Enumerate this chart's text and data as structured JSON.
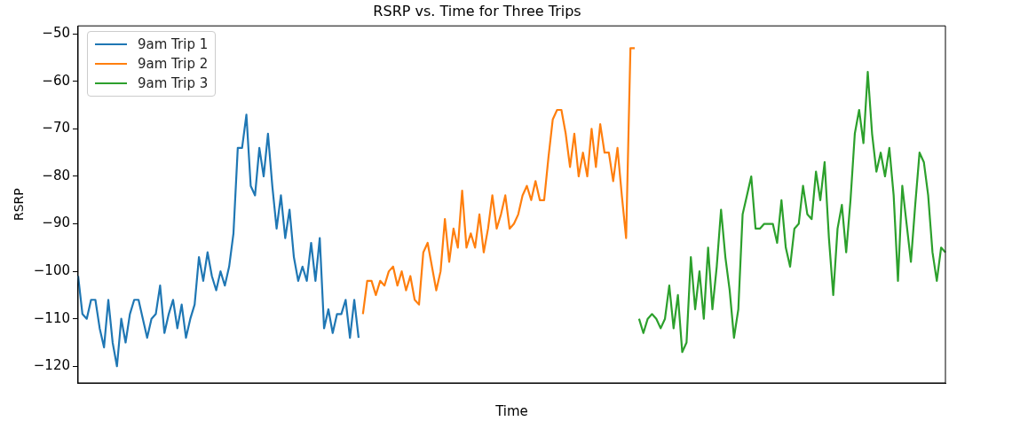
{
  "chart_data": {
    "type": "line",
    "title": "RSRP vs. Time for Three Trips",
    "xlabel": "Time",
    "ylabel": "RSRP",
    "tick_labels": "y",
    "grid": false,
    "legend": "top left",
    "marker": "none",
    "line_style": "solid",
    "categories": [
      null,
      null,
      null,
      null,
      null,
      null,
      null,
      null,
      null,
      null,
      null,
      null,
      null,
      null,
      null,
      null,
      null,
      null,
      null,
      null,
      null,
      null,
      null,
      null,
      null,
      null,
      null,
      null,
      null,
      null,
      null,
      null,
      null,
      null,
      null,
      null,
      null,
      null,
      null,
      null,
      null,
      null,
      null,
      null,
      null,
      null,
      null,
      null,
      null,
      null,
      null,
      null,
      null,
      null,
      null,
      null,
      null,
      null,
      null,
      null,
      null,
      null,
      null,
      null,
      null,
      null,
      null,
      null,
      null,
      null,
      null,
      null,
      null,
      null,
      null,
      null,
      null,
      null,
      null,
      null,
      null,
      null,
      null,
      null,
      null,
      null,
      null,
      null,
      null,
      null,
      null,
      null,
      null,
      null,
      null,
      null,
      null,
      null,
      null,
      null,
      null,
      null,
      null,
      null,
      null,
      null,
      null,
      null,
      null,
      null,
      null,
      null,
      null,
      null,
      null,
      null,
      null,
      null,
      null,
      null,
      null,
      null,
      null,
      null,
      null,
      null,
      null,
      null,
      null,
      null,
      null,
      null,
      null,
      null,
      null,
      null,
      null,
      null,
      null,
      null,
      null,
      null,
      null,
      null,
      null,
      null,
      null,
      null,
      null,
      null,
      null,
      null,
      null,
      null,
      null,
      null,
      null,
      null,
      null,
      null,
      null,
      null,
      null,
      null,
      null,
      null,
      null,
      null,
      null,
      null,
      null,
      null,
      null,
      null,
      null,
      null,
      null,
      null,
      null,
      null,
      null,
      null,
      null,
      null,
      null,
      null,
      null,
      null,
      null,
      null,
      null,
      null,
      null,
      null,
      null,
      null,
      null,
      null,
      null,
      null,
      null,
      null
    ],
    "ylim": [
      -123.5,
      -48.3
    ],
    "yticks": [
      -120,
      -110,
      -100,
      -90,
      -80,
      -70,
      -60,
      -50
    ],
    "series": [
      {
        "name": "9am Trip 1",
        "color": "#1f77b4",
        "values": [
          -101,
          -109,
          -110,
          -106,
          -106,
          -112,
          -116,
          -106,
          -115,
          -120,
          -110,
          -115,
          -109,
          -106,
          -106,
          -110,
          -114,
          -110,
          -109,
          -103,
          -113,
          -109,
          -106,
          -112,
          -107,
          -114,
          -110,
          -107,
          -97,
          -102,
          -96,
          -101,
          -104,
          -100,
          -103,
          -99,
          -92,
          -74,
          -74,
          -67,
          -82,
          -84,
          -74,
          -80,
          -71,
          -82,
          -91,
          -84,
          -93,
          -87,
          -97,
          -102,
          -99,
          -102,
          -94,
          -102,
          -93,
          -112,
          -108,
          -113,
          -109,
          -109,
          -106,
          -114,
          -106,
          -114,
          null,
          null,
          null,
          null,
          null,
          null,
          null,
          null,
          null,
          null,
          null,
          null,
          null,
          null,
          null,
          null,
          null,
          null,
          null,
          null,
          null,
          null,
          null,
          null,
          null,
          null,
          null,
          null,
          null,
          null,
          null,
          null,
          null,
          null,
          null,
          null,
          null,
          null,
          null,
          null,
          null,
          null,
          null,
          null,
          null,
          null,
          null,
          null,
          null,
          null,
          null,
          null,
          null,
          null,
          null,
          null,
          null,
          null,
          null,
          null,
          null,
          null,
          null,
          null,
          null,
          null,
          null,
          null,
          null,
          null,
          null,
          null,
          null,
          null,
          null,
          null,
          null,
          null,
          null,
          null,
          null,
          null,
          null,
          null,
          null,
          null,
          null,
          null,
          null,
          null,
          null,
          null,
          null,
          null,
          null,
          null,
          null,
          null,
          null,
          null,
          null,
          null,
          null,
          null,
          null,
          null,
          null,
          null,
          null,
          null,
          null,
          null,
          null,
          null,
          null,
          null,
          null,
          null,
          null,
          null,
          null,
          null,
          null,
          null,
          null,
          null,
          null,
          null,
          null,
          null,
          null,
          null,
          null,
          null,
          null,
          null
        ]
      },
      {
        "name": "9am Trip 2",
        "color": "#ff7f0e",
        "values": [
          null,
          null,
          null,
          null,
          null,
          null,
          null,
          null,
          null,
          null,
          null,
          null,
          null,
          null,
          null,
          null,
          null,
          null,
          null,
          null,
          null,
          null,
          null,
          null,
          null,
          null,
          null,
          null,
          null,
          null,
          null,
          null,
          null,
          null,
          null,
          null,
          null,
          null,
          null,
          null,
          null,
          null,
          null,
          null,
          null,
          null,
          null,
          null,
          null,
          null,
          null,
          null,
          null,
          null,
          null,
          null,
          null,
          null,
          null,
          null,
          null,
          null,
          null,
          null,
          null,
          null,
          -109,
          -102,
          -102,
          -105,
          -102,
          -103,
          -100,
          -99,
          -103,
          -100,
          -104,
          -101,
          -106,
          -107,
          -96,
          -94,
          -99,
          -104,
          -100,
          -89,
          -98,
          -91,
          -95,
          -83,
          -95,
          -92,
          -95,
          -88,
          -96,
          -91,
          -84,
          -91,
          -88,
          -84,
          -91,
          -90,
          -88,
          -84,
          -82,
          -85,
          -81,
          -85,
          -85,
          -76,
          -68,
          -66,
          -66,
          -71,
          -78,
          -71,
          -80,
          -75,
          -80,
          -70,
          -78,
          -69,
          -75,
          -75,
          -81,
          -74,
          -84,
          -93,
          -53,
          -53,
          null,
          null,
          null,
          null,
          null,
          null,
          null,
          null,
          null,
          null,
          null,
          null,
          null,
          null,
          null,
          null,
          null,
          null,
          null,
          null,
          null,
          null,
          null,
          null,
          null,
          null,
          null,
          null,
          null,
          null,
          null,
          null,
          null,
          null,
          null,
          null,
          null,
          null,
          null,
          null,
          null,
          null,
          null,
          null,
          null,
          null,
          null,
          null,
          null,
          null,
          null,
          null,
          null,
          null,
          null,
          null,
          null,
          null,
          null,
          null,
          null,
          null,
          null,
          null,
          null,
          null,
          null,
          null,
          null,
          null,
          null,
          null
        ]
      },
      {
        "name": "9am Trip 3",
        "color": "#2ca02c",
        "values": [
          null,
          null,
          null,
          null,
          null,
          null,
          null,
          null,
          null,
          null,
          null,
          null,
          null,
          null,
          null,
          null,
          null,
          null,
          null,
          null,
          null,
          null,
          null,
          null,
          null,
          null,
          null,
          null,
          null,
          null,
          null,
          null,
          null,
          null,
          null,
          null,
          null,
          null,
          null,
          null,
          null,
          null,
          null,
          null,
          null,
          null,
          null,
          null,
          null,
          null,
          null,
          null,
          null,
          null,
          null,
          null,
          null,
          null,
          null,
          null,
          null,
          null,
          null,
          null,
          null,
          null,
          null,
          null,
          null,
          null,
          null,
          null,
          null,
          null,
          null,
          null,
          null,
          null,
          null,
          null,
          null,
          null,
          null,
          null,
          null,
          null,
          null,
          null,
          null,
          null,
          null,
          null,
          null,
          null,
          null,
          null,
          null,
          null,
          null,
          null,
          null,
          null,
          null,
          null,
          null,
          null,
          null,
          null,
          null,
          null,
          null,
          null,
          null,
          null,
          null,
          null,
          null,
          null,
          null,
          null,
          null,
          null,
          null,
          null,
          null,
          null,
          null,
          null,
          null,
          null,
          -110,
          -113,
          -110,
          -109,
          -110,
          -112,
          -110,
          -103,
          -112,
          -105,
          -117,
          -115,
          -97,
          -108,
          -100,
          -110,
          -95,
          -108,
          -99,
          -87,
          -97,
          -104,
          -114,
          -108,
          -88,
          -84,
          -80,
          -91,
          -91,
          -90,
          -90,
          -90,
          -94,
          -85,
          -95,
          -99,
          -91,
          -90,
          -82,
          -88,
          -89,
          -79,
          -85,
          -77,
          -93,
          -105,
          -91,
          -86,
          -96,
          -85,
          -71,
          -66,
          -73,
          -58,
          -71,
          -79,
          -75,
          -80,
          -74,
          -84,
          -102,
          -82,
          -90,
          -98,
          -86,
          -75,
          -77,
          -84,
          -96,
          -102,
          -95,
          -96
        ]
      }
    ]
  }
}
